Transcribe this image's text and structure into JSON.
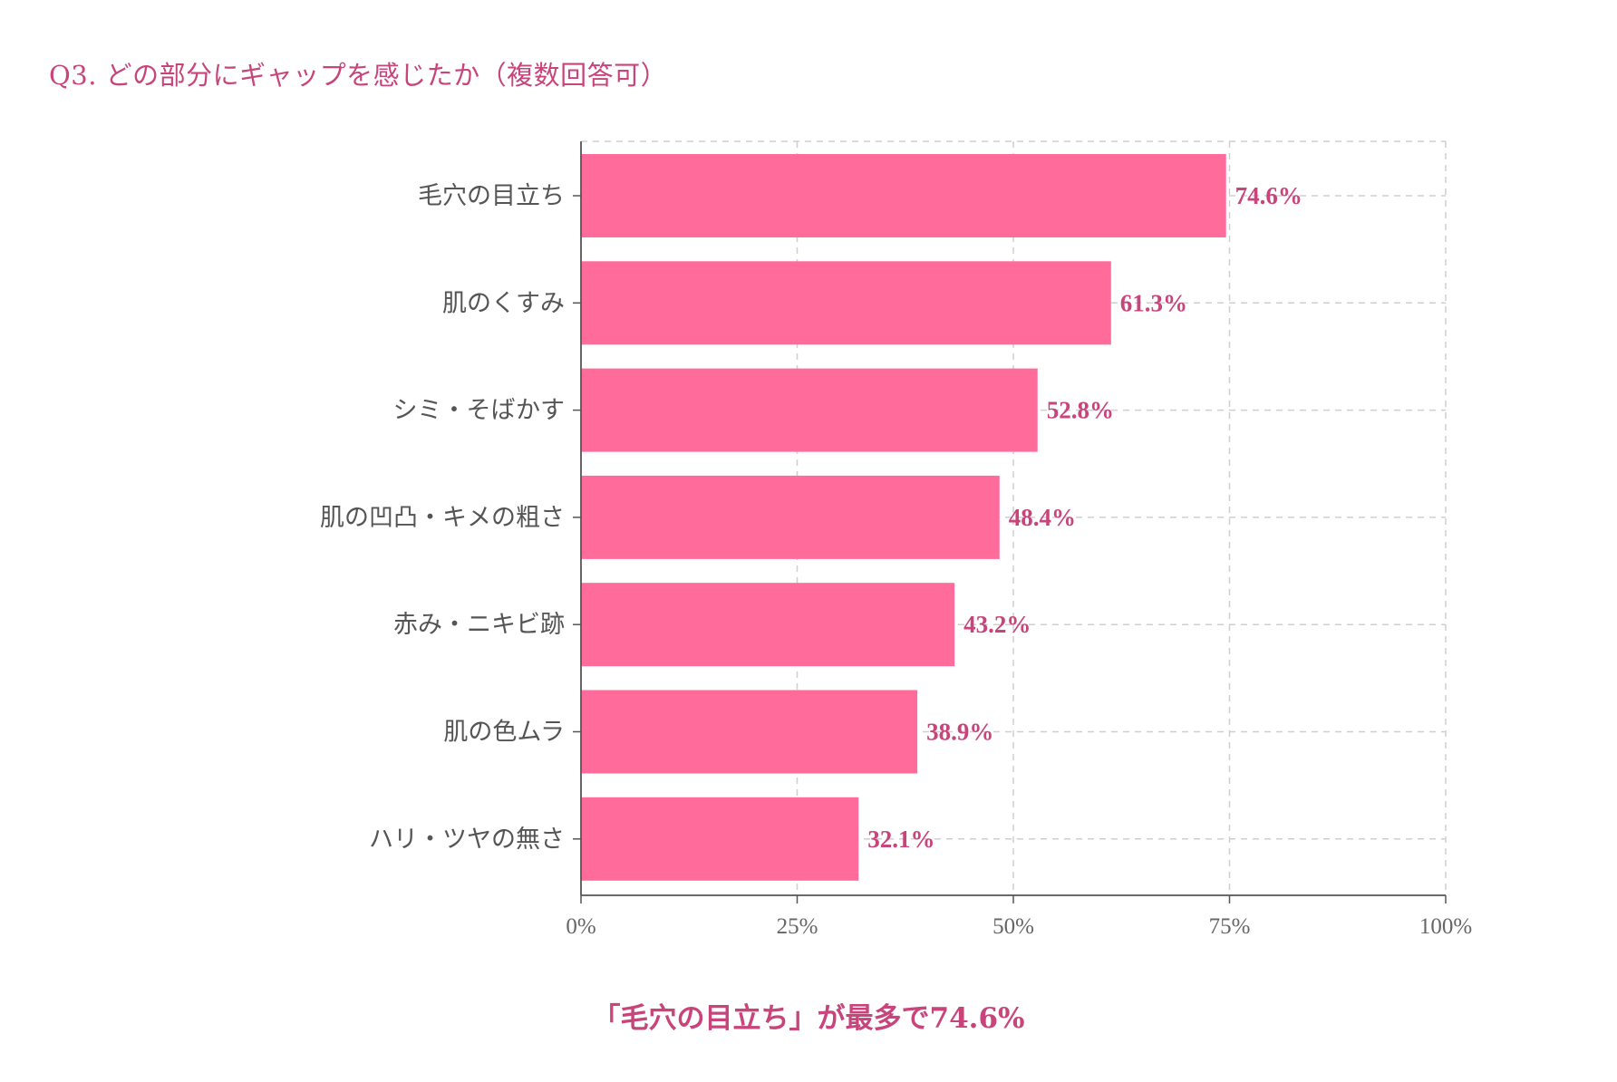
{
  "title": "Q3. どの部分にギャップを感じたか（複数回答可）",
  "footer": "「毛穴の目立ち」が最多で74.6%",
  "colors": {
    "bar": "#ff6b9a",
    "accent": "#c8457b",
    "grid": "#cfcfcf",
    "axis": "#555555"
  },
  "chart_data": {
    "type": "bar",
    "orientation": "horizontal",
    "title": "Q3. どの部分にギャップを感じたか（複数回答可）",
    "categories": [
      "毛穴の目立ち",
      "肌のくすみ",
      "シミ・そばかす",
      "肌の凹凸・キメの粗さ",
      "赤み・ニキビ跡",
      "肌の色ムラ",
      "ハリ・ツヤの無さ"
    ],
    "values": [
      74.6,
      61.3,
      52.8,
      48.4,
      43.2,
      38.9,
      32.1
    ],
    "value_labels": [
      "74.6%",
      "61.3%",
      "52.8%",
      "48.4%",
      "43.2%",
      "38.9%",
      "32.1%"
    ],
    "xlim": [
      0,
      100
    ],
    "xticks": [
      0,
      25,
      50,
      75,
      100
    ],
    "xtick_labels": [
      "0%",
      "25%",
      "50%",
      "75%",
      "100%"
    ],
    "xlabel": "",
    "ylabel": "",
    "grid": true,
    "legend": "none"
  }
}
